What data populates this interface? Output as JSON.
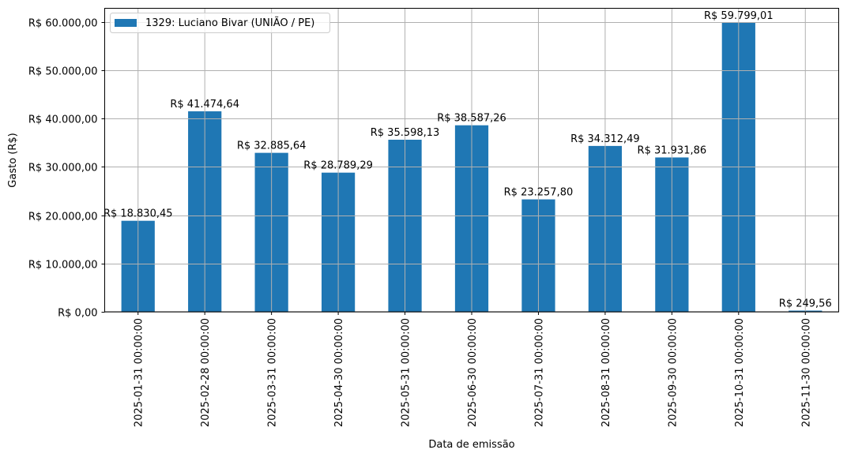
{
  "chart_data": {
    "type": "bar",
    "title": "",
    "xlabel": "Data de emissão",
    "ylabel": "Gasto (R$)",
    "ylim": [
      0,
      62789
    ],
    "yticks": [
      0,
      10000,
      20000,
      30000,
      40000,
      50000,
      60000
    ],
    "ytick_labels": [
      "R$ 0,00",
      "R$ 10.000,00",
      "R$ 20.000,00",
      "R$ 30.000,00",
      "R$ 40.000,00",
      "R$ 50.000,00",
      "R$ 60.000,00"
    ],
    "grid": true,
    "legend_position": "top-left",
    "categories": [
      "2025-01-31 00:00:00",
      "2025-02-28 00:00:00",
      "2025-03-31 00:00:00",
      "2025-04-30 00:00:00",
      "2025-05-31 00:00:00",
      "2025-06-30 00:00:00",
      "2025-07-31 00:00:00",
      "2025-08-31 00:00:00",
      "2025-09-30 00:00:00",
      "2025-10-31 00:00:00",
      "2025-11-30 00:00:00"
    ],
    "series": [
      {
        "name": "1329: Luciano Bivar (UNIÃO / PE)",
        "color": "#1f77b4",
        "values": [
          18830.45,
          41474.64,
          32885.64,
          28789.29,
          35598.13,
          38587.26,
          23257.8,
          34312.49,
          31931.86,
          59799.01,
          249.56
        ],
        "data_labels": [
          "R$ 18.830,45",
          "R$ 41.474,64",
          "R$ 32.885,64",
          "R$ 28.789,29",
          "R$ 35.598,13",
          "R$ 38.587,26",
          "R$ 23.257,80",
          "R$ 34.312,49",
          "R$ 31.931,86",
          "R$ 59.799,01",
          "R$ 249,56"
        ]
      }
    ]
  }
}
